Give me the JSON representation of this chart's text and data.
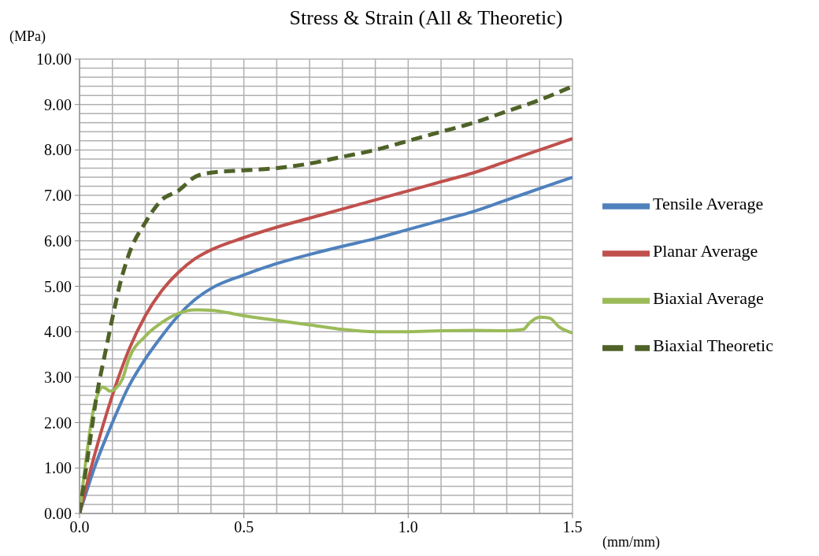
{
  "chart_data": {
    "type": "line",
    "title": "Stress & Strain (All & Theoretic)",
    "xlabel": "(mm/mm)",
    "ylabel": "(MPa)",
    "xlim": [
      0,
      1.5
    ],
    "ylim": [
      0,
      10
    ],
    "xticks": [
      {
        "value": 0,
        "label": "0.0"
      },
      {
        "value": 0.1,
        "label": null
      },
      {
        "value": 0.2,
        "label": null
      },
      {
        "value": 0.3,
        "label": null
      },
      {
        "value": 0.4,
        "label": null
      },
      {
        "value": 0.5,
        "label": "0.5"
      },
      {
        "value": 0.6,
        "label": null
      },
      {
        "value": 0.7,
        "label": null
      },
      {
        "value": 0.8,
        "label": null
      },
      {
        "value": 0.9,
        "label": null
      },
      {
        "value": 1,
        "label": "1.0"
      },
      {
        "value": 1.1,
        "label": null
      },
      {
        "value": 1.2,
        "label": null
      },
      {
        "value": 1.3,
        "label": null
      },
      {
        "value": 1.4,
        "label": null
      },
      {
        "value": 1.5,
        "label": "1.5"
      }
    ],
    "yticks": [
      {
        "value": 0,
        "label": "0.00"
      },
      {
        "value": 0.2,
        "label": null
      },
      {
        "value": 0.4,
        "label": null
      },
      {
        "value": 0.6,
        "label": null
      },
      {
        "value": 0.8,
        "label": null
      },
      {
        "value": 1,
        "label": "1.00"
      },
      {
        "value": 1.2,
        "label": null
      },
      {
        "value": 1.4,
        "label": null
      },
      {
        "value": 1.6,
        "label": null
      },
      {
        "value": 1.8,
        "label": null
      },
      {
        "value": 2,
        "label": "2.00"
      },
      {
        "value": 2.2,
        "label": null
      },
      {
        "value": 2.4,
        "label": null
      },
      {
        "value": 2.6,
        "label": null
      },
      {
        "value": 2.8,
        "label": null
      },
      {
        "value": 3,
        "label": "3.00"
      },
      {
        "value": 3.2,
        "label": null
      },
      {
        "value": 3.4,
        "label": null
      },
      {
        "value": 3.6,
        "label": null
      },
      {
        "value": 3.8,
        "label": null
      },
      {
        "value": 4,
        "label": "4.00"
      },
      {
        "value": 4.2,
        "label": null
      },
      {
        "value": 4.4,
        "label": null
      },
      {
        "value": 4.6,
        "label": null
      },
      {
        "value": 4.8,
        "label": null
      },
      {
        "value": 5,
        "label": "5.00"
      },
      {
        "value": 5.2,
        "label": null
      },
      {
        "value": 5.4,
        "label": null
      },
      {
        "value": 5.6,
        "label": null
      },
      {
        "value": 5.8,
        "label": null
      },
      {
        "value": 6,
        "label": "6.00"
      },
      {
        "value": 6.2,
        "label": null
      },
      {
        "value": 6.4,
        "label": null
      },
      {
        "value": 6.6,
        "label": null
      },
      {
        "value": 6.8,
        "label": null
      },
      {
        "value": 7,
        "label": "7.00"
      },
      {
        "value": 7.2,
        "label": null
      },
      {
        "value": 7.4,
        "label": null
      },
      {
        "value": 7.6,
        "label": null
      },
      {
        "value": 7.8,
        "label": null
      },
      {
        "value": 8,
        "label": "8.00"
      },
      {
        "value": 8.2,
        "label": null
      },
      {
        "value": 8.4,
        "label": null
      },
      {
        "value": 8.6,
        "label": null
      },
      {
        "value": 8.8,
        "label": null
      },
      {
        "value": 9,
        "label": "9.00"
      },
      {
        "value": 9.2,
        "label": null
      },
      {
        "value": 9.4,
        "label": null
      },
      {
        "value": 9.6,
        "label": null
      },
      {
        "value": 9.8,
        "label": null
      },
      {
        "value": 10,
        "label": "10.00"
      }
    ],
    "grid": true,
    "legend": "right",
    "marker": "none",
    "series": [
      {
        "name": "Tensile Average",
        "color": "#4f81bd",
        "x": [
          0,
          0.05,
          0.1,
          0.15,
          0.2,
          0.25,
          0.3,
          0.35,
          0.4,
          0.5,
          0.6,
          0.7,
          0.8,
          0.9,
          1.0,
          1.1,
          1.2,
          1.3,
          1.4,
          1.5
        ],
        "values": [
          0,
          1.1,
          2.0,
          2.8,
          3.4,
          3.9,
          4.35,
          4.7,
          4.95,
          5.25,
          5.5,
          5.7,
          5.88,
          6.05,
          6.25,
          6.45,
          6.65,
          6.9,
          7.15,
          7.4
        ]
      },
      {
        "name": "Planar Average",
        "color": "#c0504d",
        "x": [
          0,
          0.05,
          0.1,
          0.15,
          0.2,
          0.25,
          0.3,
          0.35,
          0.4,
          0.5,
          0.6,
          0.7,
          0.8,
          0.9,
          1.0,
          1.1,
          1.2,
          1.3,
          1.4,
          1.5
        ],
        "values": [
          0,
          1.4,
          2.6,
          3.6,
          4.35,
          4.9,
          5.3,
          5.6,
          5.8,
          6.07,
          6.3,
          6.5,
          6.7,
          6.9,
          7.1,
          7.3,
          7.5,
          7.75,
          8.0,
          8.25
        ]
      },
      {
        "name": "Biaxial Average",
        "color": "#9bbb59",
        "x": [
          0,
          0.02,
          0.04,
          0.06,
          0.07,
          0.08,
          0.093,
          0.11,
          0.13,
          0.15,
          0.2,
          0.25,
          0.3,
          0.35,
          0.4,
          0.45,
          0.5,
          0.6,
          0.7,
          0.8,
          0.9,
          1.0,
          1.1,
          1.2,
          1.3,
          1.35,
          1.37,
          1.4,
          1.43,
          1.46,
          1.5
        ],
        "values": [
          0,
          1.2,
          2.2,
          2.7,
          2.78,
          2.75,
          2.69,
          2.75,
          2.95,
          3.4,
          3.9,
          4.2,
          4.4,
          4.48,
          4.47,
          4.42,
          4.35,
          4.25,
          4.15,
          4.05,
          4.0,
          4.0,
          4.02,
          4.03,
          4.02,
          4.05,
          4.2,
          4.32,
          4.3,
          4.1,
          3.97
        ]
      },
      {
        "name": "Biaxial Theoretic",
        "color": "#4f6228",
        "line_style": "dashed",
        "x": [
          0,
          0.03,
          0.05,
          0.08,
          0.1,
          0.125,
          0.15,
          0.2,
          0.25,
          0.3,
          0.35,
          0.4,
          0.5,
          0.6,
          0.7,
          0.8,
          0.9,
          1.0,
          1.1,
          1.2,
          1.3,
          1.4,
          1.5
        ],
        "values": [
          0,
          1.5,
          2.5,
          3.6,
          4.3,
          5.1,
          5.7,
          6.4,
          6.9,
          7.1,
          7.4,
          7.5,
          7.55,
          7.6,
          7.7,
          7.85,
          8.0,
          8.2,
          8.4,
          8.6,
          8.85,
          9.1,
          9.4
        ]
      }
    ]
  }
}
